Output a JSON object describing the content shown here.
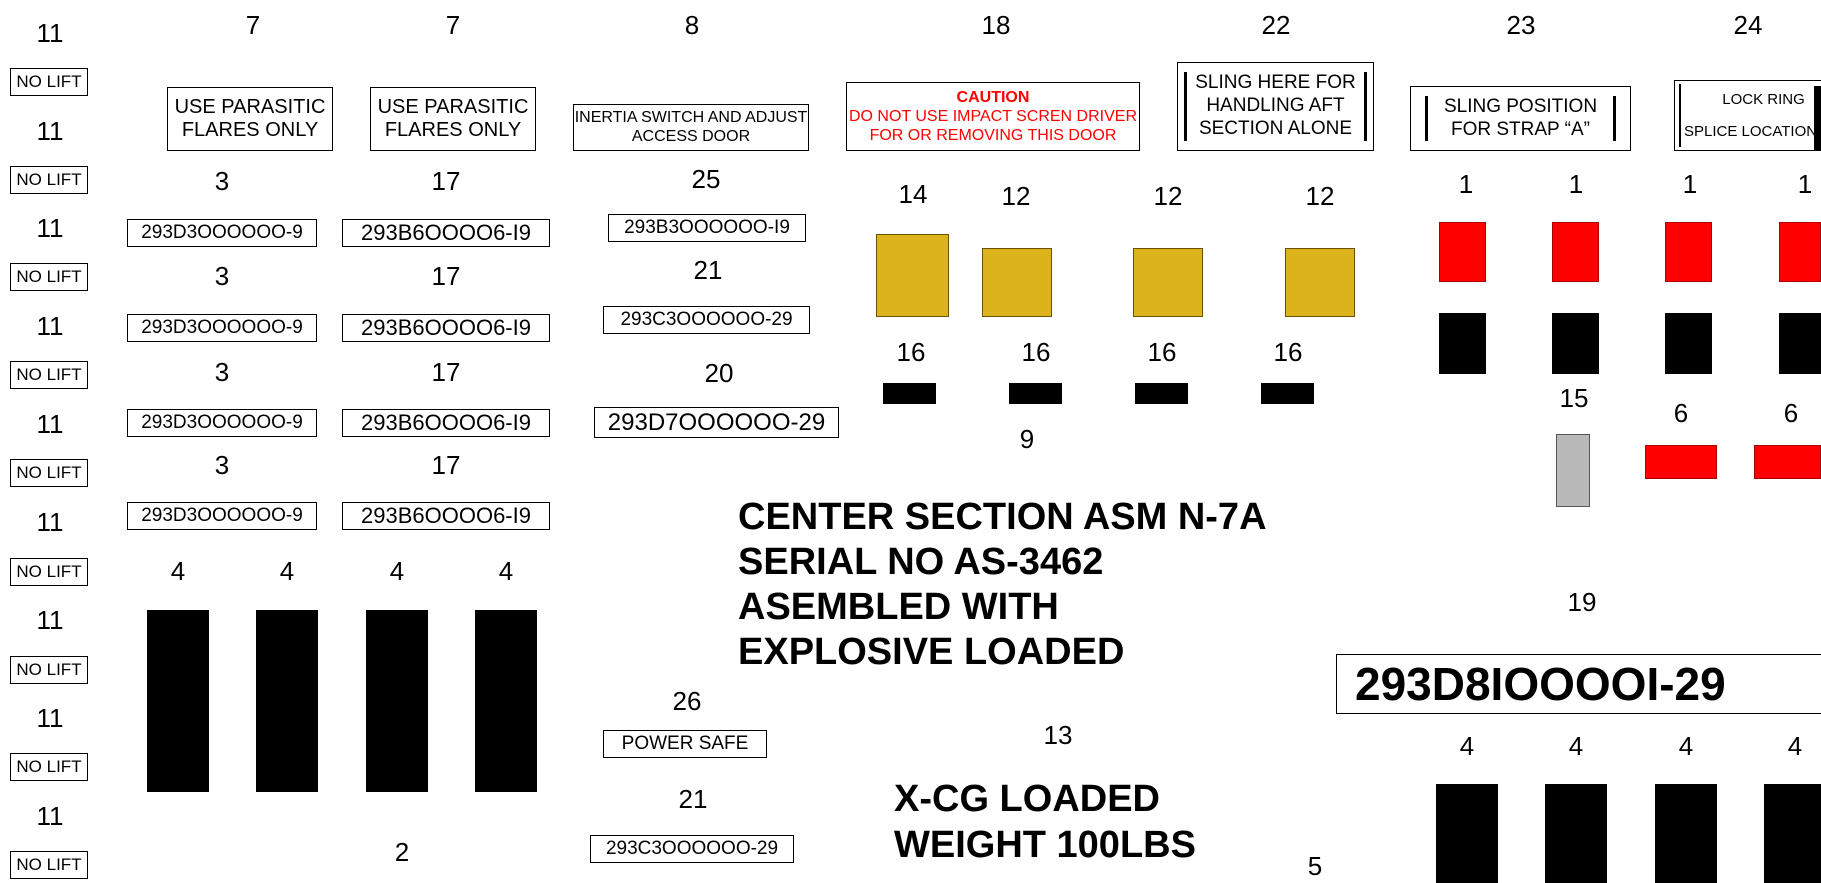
{
  "left_column": {
    "numbers": [
      "11",
      "11",
      "11",
      "11",
      "11",
      "11",
      "11",
      "11",
      "11"
    ],
    "no_lift": [
      "NO LIFT",
      "NO LIFT",
      "NO LIFT",
      "NO LIFT",
      "NO LIFT",
      "NO LIFT",
      "NO LIFT",
      "NO LIFT",
      "NO LIFT"
    ]
  },
  "flares": {
    "num_1": "7",
    "num_2": "7",
    "label_1": [
      "USE PARASITIC",
      "FLARES ONLY"
    ],
    "label_2": [
      "USE PARASITIC",
      "FLARES ONLY"
    ]
  },
  "part_column_a": {
    "numbers": [
      "3",
      "3",
      "3",
      "3"
    ],
    "parts": [
      "293D3OOOOOO-9",
      "293D3OOOOOO-9",
      "293D3OOOOOO-9",
      "293D3OOOOOO-9"
    ]
  },
  "part_column_b": {
    "numbers": [
      "17",
      "17",
      "17",
      "17"
    ],
    "parts": [
      "293B6OOOO6-I9",
      "293B6OOOO6-I9",
      "293B6OOOO6-I9",
      "293B6OOOO6-I9"
    ]
  },
  "inertia": {
    "num": "8",
    "line1": "INERTIA SWITCH AND ADJUST",
    "line2": "ACCESS DOOR"
  },
  "mid_parts": {
    "num_25": "25",
    "part_25": "293B3OOOOOO-I9",
    "num_21a": "21",
    "part_21a": "293C3OOOOOO-29",
    "num_20": "20",
    "part_20": "293D7OOOOOO-29",
    "num_26": "26",
    "power_safe": "POWER SAFE",
    "num_21b": "21",
    "part_21b": "293C3OOOOOO-29"
  },
  "caution": {
    "num": "18",
    "title": "CAUTION",
    "line1": "DO NOT USE IMPACT SCREN DRIVER",
    "line2": "FOR OR REMOVING THIS DOOR"
  },
  "sling_aft": {
    "num": "22",
    "line1": "SLING HERE FOR",
    "line2": "HANDLING AFT",
    "line3": "SECTION ALONE"
  },
  "sling_strap": {
    "num": "23",
    "line1": "SLING POSITION",
    "line2": "FOR STRAP “A”"
  },
  "lock_ring": {
    "num": "24",
    "line1": "LOCK  RING",
    "line2": "SPLICE LOCATION"
  },
  "yellow_group": {
    "numbers": [
      "14",
      "12",
      "12",
      "12"
    ],
    "black_numbers": [
      "16",
      "16",
      "16",
      "16"
    ],
    "bottom_num": "9"
  },
  "right_group": {
    "top_numbers": [
      "1",
      "1",
      "1",
      "1"
    ],
    "num_15": "15",
    "num_6a": "6",
    "num_6b": "6",
    "num_19": "19",
    "big_part": "293D8IOOOOI-29",
    "bottom_numbers": [
      "4",
      "4",
      "4",
      "4"
    ]
  },
  "left_bars": {
    "numbers": [
      "4",
      "4",
      "4",
      "4"
    ],
    "bottom_num": "2"
  },
  "center_text": {
    "lines": [
      "CENTER  SECTION  ASM N-7A",
      "SERIAL NO AS-3462",
      "ASEMBLED  WITH",
      "EXPLOSIVE  LOADED"
    ],
    "num_13": "13",
    "weight_lines": [
      "X-CG  LOADED",
      "WEIGHT  100LBS"
    ],
    "num_5": "5"
  },
  "colors": {
    "red": "#ff0000",
    "yellow": "#dcb31b",
    "gray": "#b9b9b9",
    "black": "#000000"
  }
}
